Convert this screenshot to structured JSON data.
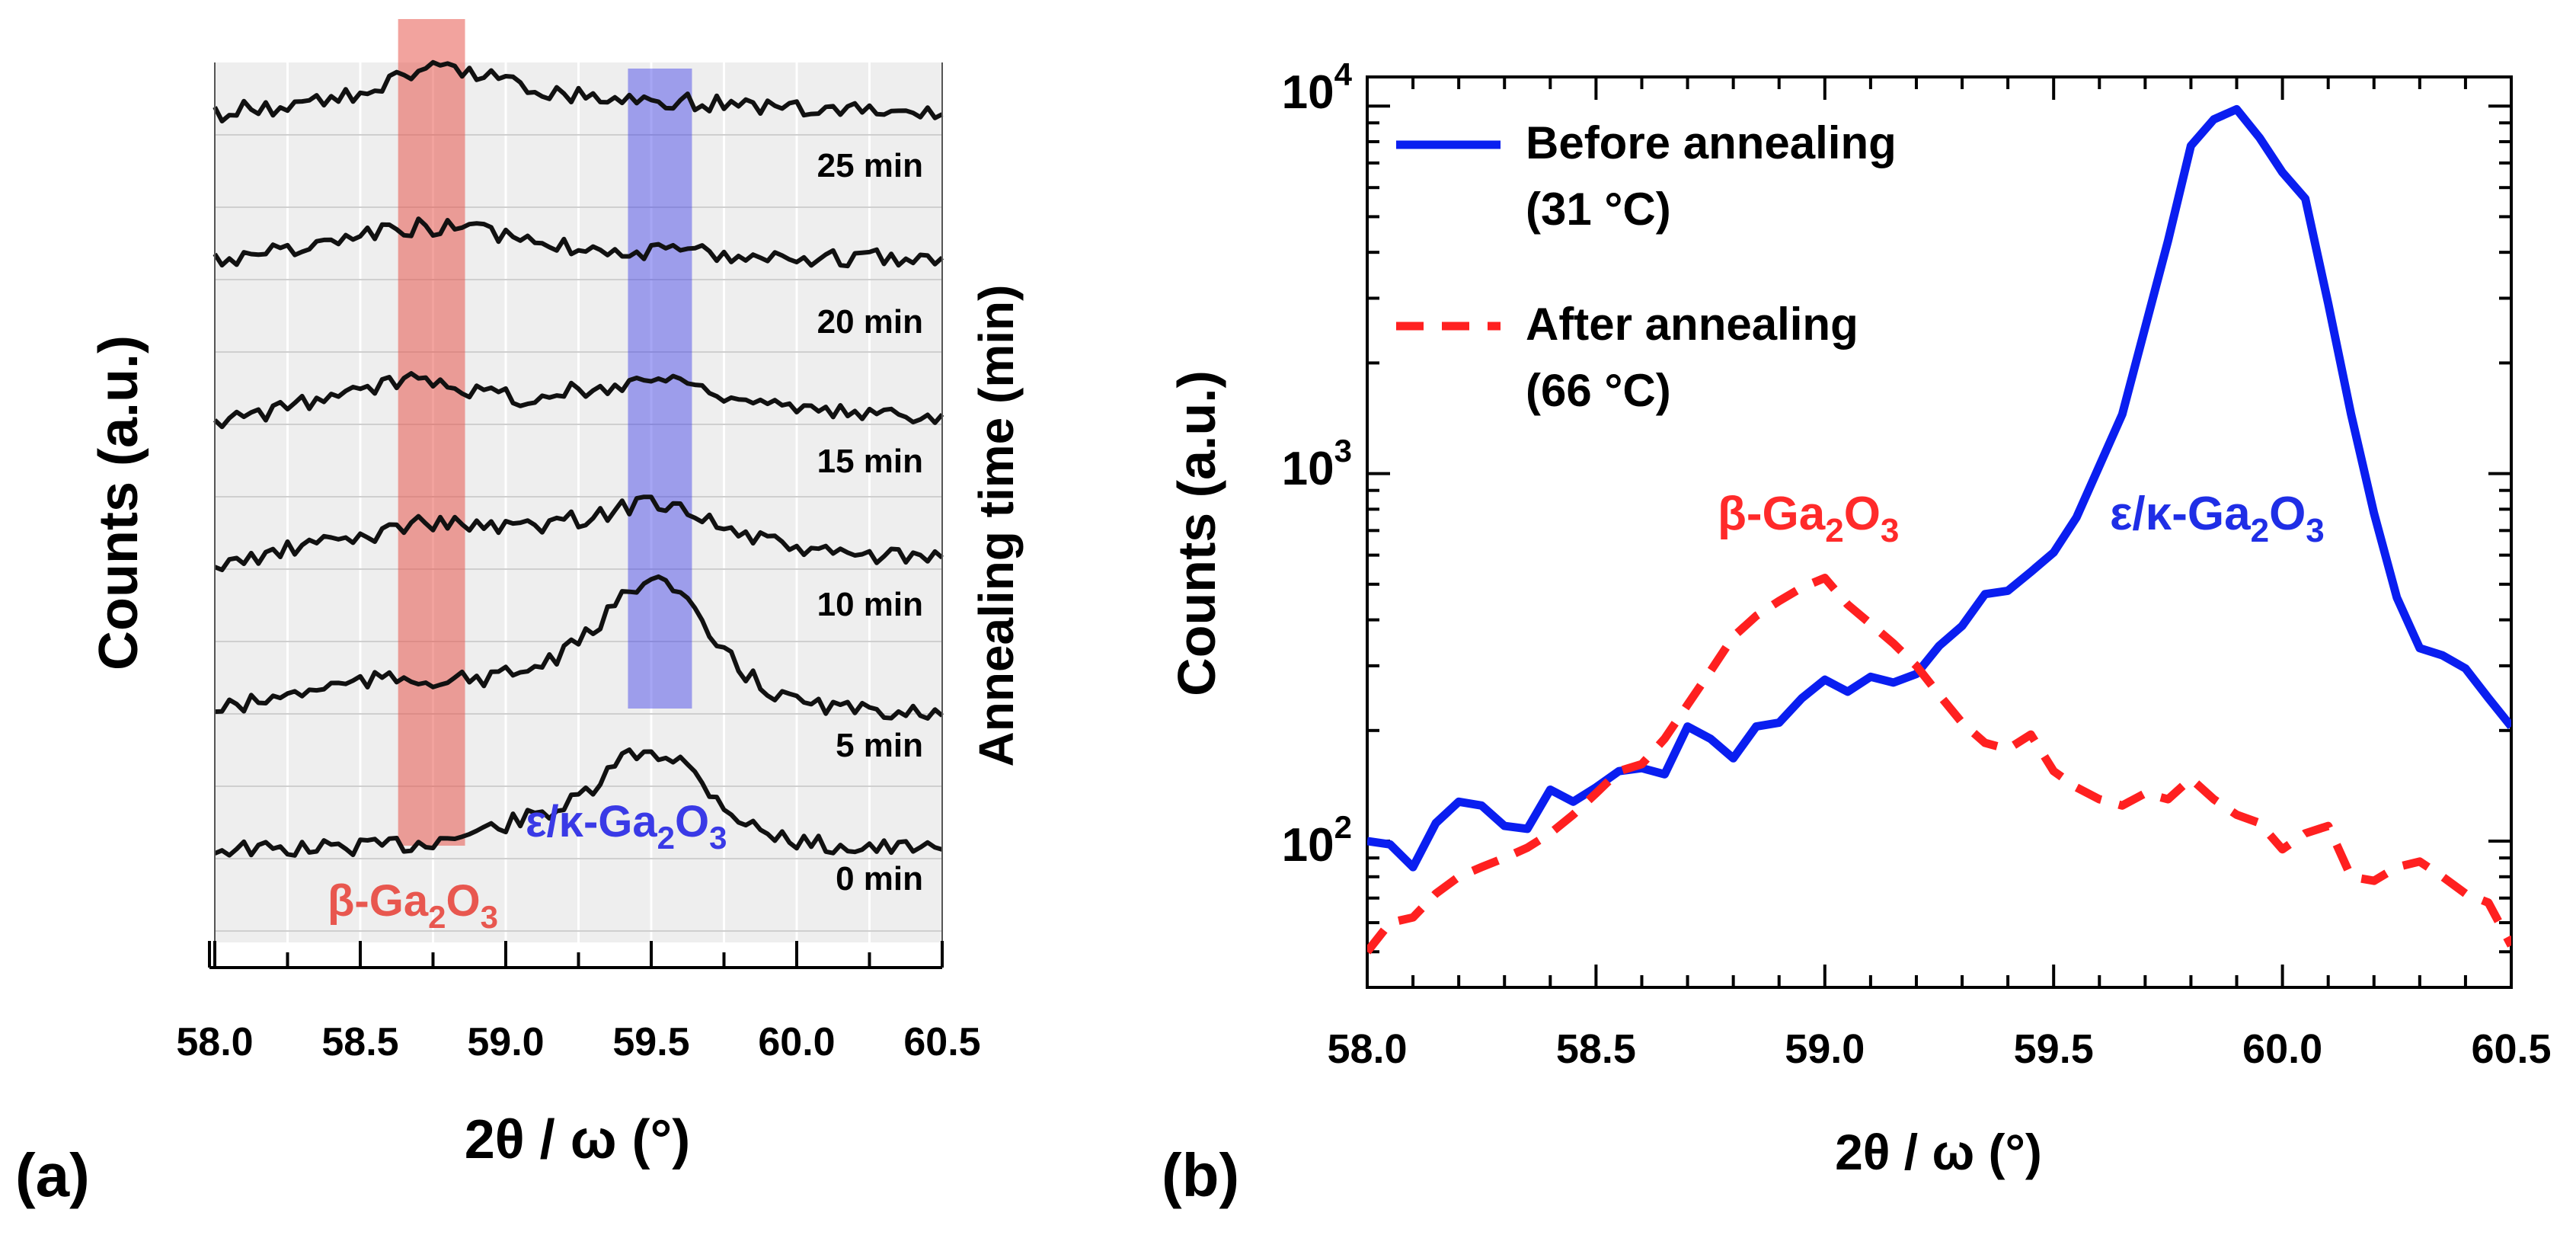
{
  "chart_data": [
    {
      "panel": "(a)",
      "type": "line",
      "xlabel": "2θ / ω (°)",
      "ylabel": "Counts  (a.u.)",
      "y2label": "Annealing time (min)",
      "xlim": [
        58.0,
        60.5
      ],
      "xticks": [
        "58.0",
        "58.5",
        "59.0",
        "59.5",
        "60.0",
        "60.5"
      ],
      "grid": true,
      "highlights": [
        {
          "label_main": "β-Ga",
          "sub1": "2",
          "mid": "O",
          "sub2": "3",
          "color": "#e8574f",
          "xrange": [
            58.63,
            58.86
          ]
        },
        {
          "label_main": "ε/κ-Ga",
          "sub1": "2",
          "mid": "O",
          "sub2": "3",
          "color": "#3a3ae6",
          "xrange": [
            59.42,
            59.64
          ]
        }
      ],
      "x": [
        58.0,
        58.1,
        58.2,
        58.3,
        58.4,
        58.5,
        58.6,
        58.7,
        58.8,
        58.9,
        59.0,
        59.1,
        59.2,
        59.3,
        59.4,
        59.5,
        59.6,
        59.7,
        59.8,
        59.9,
        60.0,
        60.1,
        60.2,
        60.3,
        60.4,
        60.5
      ],
      "series": [
        {
          "name": "0 min",
          "label": "0 min",
          "values": [
            0.0,
            0.01,
            -0.005,
            0.005,
            0.015,
            0.02,
            0.03,
            0.04,
            0.08,
            0.12,
            0.18,
            0.24,
            0.3,
            0.42,
            0.65,
            0.7,
            0.64,
            0.42,
            0.22,
            0.11,
            0.06,
            0.03,
            0.02,
            0.01,
            0.005,
            0.0
          ]
        },
        {
          "name": "5 min",
          "label": "5 min",
          "values": [
            0.0,
            0.04,
            0.08,
            0.13,
            0.17,
            0.2,
            0.22,
            0.22,
            0.21,
            0.22,
            0.25,
            0.3,
            0.4,
            0.56,
            0.8,
            0.98,
            0.82,
            0.52,
            0.3,
            0.14,
            0.06,
            0.03,
            0.0,
            -0.02,
            0.02,
            -0.04
          ]
        },
        {
          "name": "10 min",
          "label": "10 min",
          "values": [
            0.0,
            0.05,
            0.1,
            0.15,
            0.19,
            0.21,
            0.26,
            0.33,
            0.31,
            0.3,
            0.28,
            0.3,
            0.33,
            0.36,
            0.42,
            0.48,
            0.44,
            0.33,
            0.24,
            0.18,
            0.14,
            0.1,
            0.09,
            0.08,
            0.07,
            0.07
          ]
        },
        {
          "name": "15 min",
          "label": "15 min",
          "values": [
            0.0,
            0.04,
            0.08,
            0.14,
            0.18,
            0.22,
            0.28,
            0.33,
            0.3,
            0.22,
            0.2,
            0.15,
            0.22,
            0.23,
            0.28,
            0.32,
            0.3,
            0.24,
            0.18,
            0.13,
            0.09,
            0.07,
            0.07,
            0.06,
            0.06,
            0.06
          ]
        },
        {
          "name": "20 min",
          "label": "20 min",
          "values": [
            0.0,
            0.02,
            0.05,
            0.08,
            0.11,
            0.15,
            0.2,
            0.23,
            0.22,
            0.2,
            0.17,
            0.13,
            0.1,
            0.08,
            0.06,
            0.05,
            0.05,
            0.04,
            0.03,
            0.02,
            0.02,
            0.0,
            0.01,
            0.02,
            0.0,
            0.01
          ]
        },
        {
          "name": "25 min",
          "label": "25 min",
          "values": [
            0.0,
            0.04,
            0.05,
            0.08,
            0.1,
            0.15,
            0.23,
            0.3,
            0.32,
            0.3,
            0.24,
            0.18,
            0.15,
            0.13,
            0.11,
            0.1,
            0.09,
            0.08,
            0.06,
            0.05,
            0.04,
            0.03,
            0.03,
            0.02,
            0.01,
            0.0
          ]
        }
      ]
    },
    {
      "panel": "(b)",
      "type": "line",
      "yscale": "log",
      "xlabel": "2θ / ω (°)",
      "ylabel": "Counts (a.u.)",
      "xlim": [
        58.0,
        60.5
      ],
      "ylim": [
        40,
        12000
      ],
      "xticks": [
        "58.0",
        "58.5",
        "59.0",
        "59.5",
        "60.0",
        "60.5"
      ],
      "yticks": [
        {
          "value": 100,
          "base": "10",
          "exp": "2"
        },
        {
          "value": 1000,
          "base": "10",
          "exp": "3"
        },
        {
          "value": 10000,
          "base": "10",
          "exp": "4"
        }
      ],
      "legend_position": "top-left",
      "annotations": [
        {
          "label_main": "β-Ga",
          "sub1": "2",
          "mid": "O",
          "sub2": "3",
          "color": "#ff2a2a"
        },
        {
          "label_main": "ε/κ-Ga",
          "sub1": "2",
          "mid": "O",
          "sub2": "3",
          "color": "#1f2ee6"
        }
      ],
      "series": [
        {
          "name": "Before annealing",
          "legend_line1": "Before annealing",
          "legend_line2": "(31 °C)",
          "color": "#0a1ef0",
          "style": "solid",
          "x": [
            58.0,
            58.05,
            58.1,
            58.15,
            58.2,
            58.25,
            58.3,
            58.35,
            58.4,
            58.45,
            58.5,
            58.55,
            58.6,
            58.65,
            58.7,
            58.75,
            58.8,
            58.85,
            58.9,
            58.95,
            59.0,
            59.05,
            59.1,
            59.15,
            59.2,
            59.25,
            59.3,
            59.35,
            59.4,
            59.45,
            59.5,
            59.55,
            59.6,
            59.65,
            59.7,
            59.75,
            59.8,
            59.85,
            59.9,
            59.95,
            60.0,
            60.05,
            60.1,
            60.15,
            60.2,
            60.25,
            60.3,
            60.35,
            60.4,
            60.45,
            60.5
          ],
          "values": [
            100,
            98,
            85,
            112,
            128,
            125,
            110,
            108,
            138,
            128,
            140,
            155,
            158,
            152,
            205,
            190,
            168,
            205,
            210,
            245,
            275,
            255,
            280,
            270,
            285,
            340,
            385,
            470,
            480,
            540,
            610,
            760,
            1050,
            1450,
            2500,
            4300,
            7800,
            9200,
            9800,
            8200,
            6600,
            5600,
            2900,
            1450,
            780,
            460,
            335,
            320,
            295,
            245,
            205
          ]
        },
        {
          "name": "After annealing",
          "legend_line1": "After annealing",
          "legend_line2": "(66 °C)",
          "color": "#ff2020",
          "style": "dashed",
          "x": [
            58.0,
            58.05,
            58.1,
            58.15,
            58.2,
            58.25,
            58.3,
            58.35,
            58.4,
            58.45,
            58.5,
            58.55,
            58.6,
            58.65,
            58.7,
            58.75,
            58.8,
            58.85,
            58.9,
            58.95,
            59.0,
            59.05,
            59.1,
            59.15,
            59.2,
            59.25,
            59.3,
            59.35,
            59.4,
            59.45,
            59.5,
            59.55,
            59.6,
            59.65,
            59.7,
            59.75,
            59.8,
            59.85,
            59.9,
            59.95,
            60.0,
            60.05,
            60.1,
            60.15,
            60.2,
            60.25,
            60.3,
            60.35,
            60.4,
            60.45,
            60.5
          ],
          "values": [
            50,
            60,
            62,
            72,
            80,
            85,
            90,
            96,
            105,
            118,
            135,
            155,
            162,
            190,
            235,
            290,
            360,
            410,
            450,
            490,
            520,
            440,
            390,
            345,
            300,
            250,
            210,
            185,
            178,
            195,
            155,
            140,
            130,
            125,
            135,
            130,
            148,
            130,
            118,
            112,
            95,
            105,
            110,
            80,
            78,
            85,
            88,
            80,
            72,
            68,
            52
          ]
        }
      ]
    }
  ],
  "panel_labels": {
    "a": "(a)",
    "b": "(b)"
  }
}
